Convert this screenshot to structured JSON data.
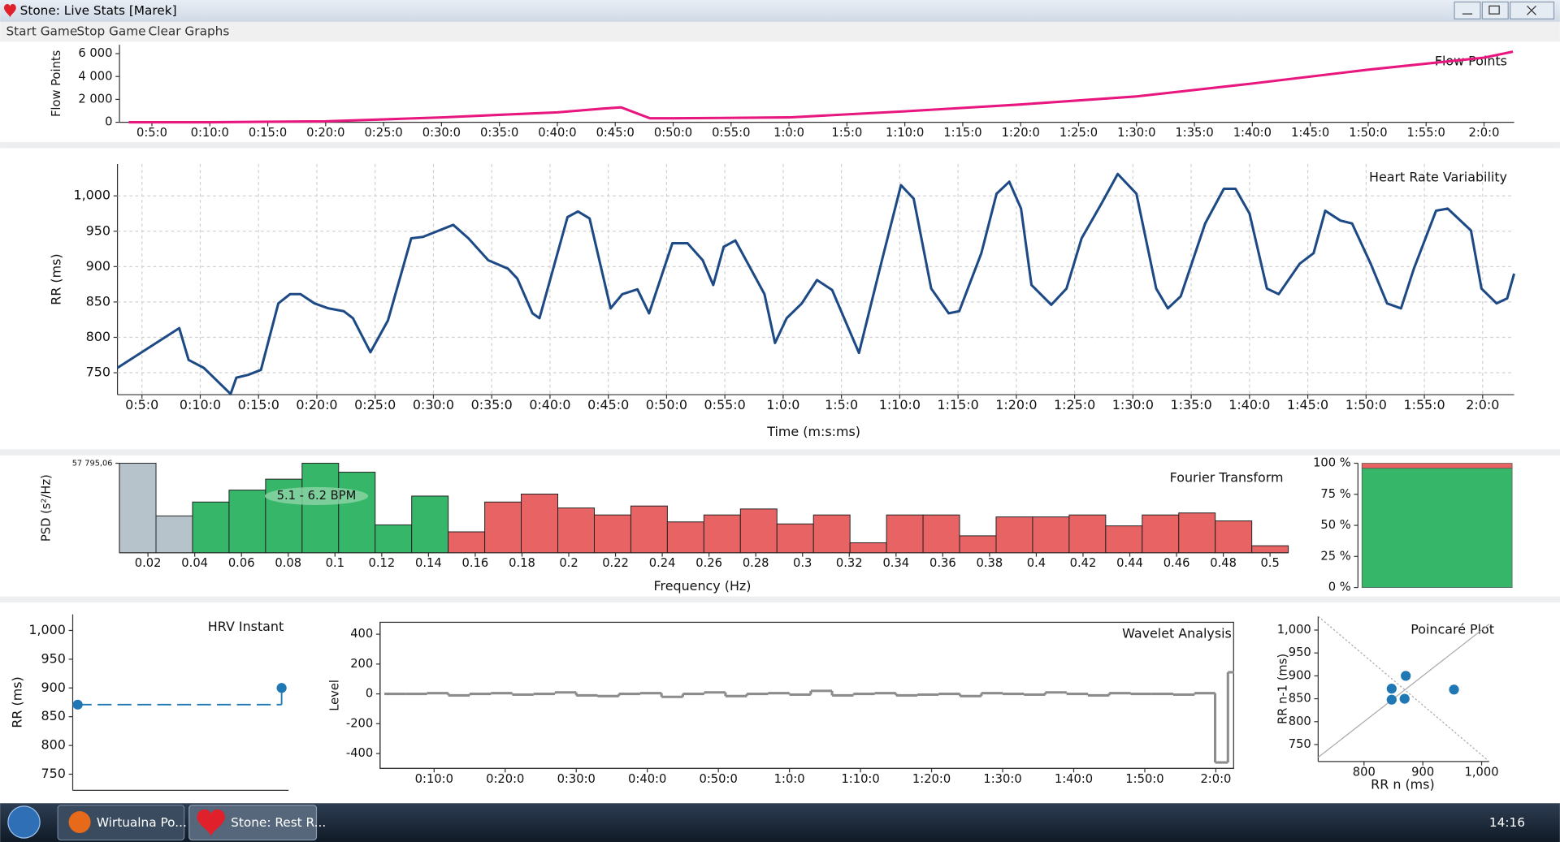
{
  "window_title": "Stone: Live Stats [Marek]",
  "menu": [
    "Start Game",
    "Stop Game",
    "Clear Graphs"
  ],
  "taskbar": {
    "buttons": [
      "Wirtualna Po...",
      "Stone: Rest R..."
    ],
    "clock": "14:16"
  },
  "chart_data": [
    {
      "type": "line",
      "title": "Flow Points",
      "y_label": "Flow Points",
      "color": "#e8177f",
      "x": [
        3,
        10,
        20,
        25,
        30,
        35,
        40,
        44,
        45.5,
        48,
        50,
        60,
        70,
        80,
        90,
        100,
        110,
        120,
        122.5
      ],
      "values": [
        0,
        0,
        90,
        250,
        430,
        650,
        870,
        1200,
        1300,
        350,
        350,
        430,
        960,
        1560,
        2260,
        3390,
        4600,
        5650,
        6170
      ],
      "xlim": [
        2.2,
        122.6
      ],
      "ylim": [
        0,
        6780
      ],
      "yticks": [
        0,
        {
          "value": 2000,
          "label": "2 000"
        },
        {
          "value": 4000,
          "label": "4 000"
        },
        {
          "value": 6000,
          "label": "6 000"
        }
      ],
      "xticks": [
        {
          "value": 5,
          "label": "0:5:0"
        },
        {
          "value": 10,
          "label": "0:10:0"
        },
        {
          "value": 15,
          "label": "0:15:0"
        },
        {
          "value": 20,
          "label": "0:20:0"
        },
        {
          "value": 25,
          "label": "0:25:0"
        },
        {
          "value": 30,
          "label": "0:30:0"
        },
        {
          "value": 35,
          "label": "0:35:0"
        },
        {
          "value": 40,
          "label": "0:40:0"
        },
        {
          "value": 45,
          "label": "0:45:0"
        },
        {
          "value": 50,
          "label": "0:50:0"
        },
        {
          "value": 55,
          "label": "0:55:0"
        },
        {
          "value": 60,
          "label": "1:0:0"
        },
        {
          "value": 65,
          "label": "1:5:0"
        },
        {
          "value": 70,
          "label": "1:10:0"
        },
        {
          "value": 75,
          "label": "1:15:0"
        },
        {
          "value": 80,
          "label": "1:20:0"
        },
        {
          "value": 85,
          "label": "1:25:0"
        },
        {
          "value": 90,
          "label": "1:30:0"
        },
        {
          "value": 95,
          "label": "1:35:0"
        },
        {
          "value": 100,
          "label": "1:40:0"
        },
        {
          "value": 105,
          "label": "1:45:0"
        },
        {
          "value": 110,
          "label": "1:50:0"
        },
        {
          "value": 115,
          "label": "1:55:0"
        },
        {
          "value": 120,
          "label": "2:0:0"
        }
      ],
      "grid": false
    },
    {
      "type": "line",
      "title": "Heart Rate Variability",
      "x_label": "Time (m:s:ms)",
      "y_label": "RR (ms)",
      "color": "#1d4a85",
      "x": [
        2.9,
        8.2,
        9.0,
        10.3,
        12.6,
        13.1,
        14.1,
        15.2,
        16.7,
        17.7,
        18.6,
        19.8,
        21.0,
        22.3,
        23.1,
        24.6,
        26.1,
        28.1,
        29.1,
        31.7,
        33.0,
        34.7,
        36.4,
        37.2,
        38.5,
        39.1,
        41.5,
        42.4,
        43.4,
        45.2,
        46.2,
        47.5,
        48.5,
        50.5,
        51.8,
        53.1,
        54.0,
        54.9,
        55.9,
        58.4,
        59.3,
        60.3,
        61.6,
        62.9,
        64.2,
        66.5,
        68.4,
        70.1,
        71.2,
        72.7,
        74.2,
        75.1,
        77.0,
        78.3,
        79.4,
        80.4,
        81.3,
        83.0,
        84.3,
        85.6,
        87.3,
        88.7,
        90.3,
        92.0,
        93.0,
        94.1,
        96.2,
        97.8,
        98.8,
        100.0,
        101.5,
        102.5,
        104.3,
        105.5,
        106.5,
        107.8,
        108.8,
        110.4,
        111.8,
        113.0,
        114.1,
        116.0,
        117.0,
        119.0,
        119.9,
        121.2,
        122.1,
        122.7
      ],
      "values": [
        757,
        813,
        768,
        757,
        720,
        743,
        747,
        754,
        848,
        861,
        861,
        848,
        841,
        837,
        827,
        779,
        824,
        940,
        942,
        959,
        940,
        909,
        897,
        883,
        834,
        827,
        970,
        978,
        968,
        841,
        861,
        868,
        834,
        933,
        933,
        909,
        874,
        928,
        937,
        861,
        792,
        827,
        848,
        881,
        867,
        778,
        904,
        1015,
        996,
        869,
        834,
        837,
        919,
        1003,
        1020,
        982,
        874,
        846,
        869,
        940,
        989,
        1031,
        1003,
        869,
        841,
        858,
        961,
        1010,
        1010,
        975,
        869,
        861,
        904,
        919,
        979,
        965,
        961,
        904,
        848,
        841,
        897,
        979,
        982,
        951,
        869,
        848,
        855,
        890
      ],
      "xlim": [
        2.9,
        122.7
      ],
      "ylim": [
        719,
        1045
      ],
      "yticks": [
        750,
        800,
        850,
        900,
        950,
        {
          "value": 1000,
          "label": "1,000"
        }
      ],
      "xticks": [
        {
          "value": 5,
          "label": "0:5:0"
        },
        {
          "value": 10,
          "label": "0:10:0"
        },
        {
          "value": 15,
          "label": "0:15:0"
        },
        {
          "value": 20,
          "label": "0:20:0"
        },
        {
          "value": 25,
          "label": "0:25:0"
        },
        {
          "value": 30,
          "label": "0:30:0"
        },
        {
          "value": 35,
          "label": "0:35:0"
        },
        {
          "value": 40,
          "label": "0:40:0"
        },
        {
          "value": 45,
          "label": "0:45:0"
        },
        {
          "value": 50,
          "label": "0:50:0"
        },
        {
          "value": 55,
          "label": "0:55:0"
        },
        {
          "value": 60,
          "label": "1:0:0"
        },
        {
          "value": 65,
          "label": "1:5:0"
        },
        {
          "value": 70,
          "label": "1:10:0"
        },
        {
          "value": 75,
          "label": "1:15:0"
        },
        {
          "value": 80,
          "label": "1:20:0"
        },
        {
          "value": 85,
          "label": "1:25:0"
        },
        {
          "value": 90,
          "label": "1:30:0"
        },
        {
          "value": 95,
          "label": "1:35:0"
        },
        {
          "value": 100,
          "label": "1:40:0"
        },
        {
          "value": 105,
          "label": "1:45:0"
        },
        {
          "value": 110,
          "label": "1:50:0"
        },
        {
          "value": 115,
          "label": "1:55:0"
        },
        {
          "value": 120,
          "label": "2:0:0"
        }
      ],
      "grid": true
    },
    {
      "type": "histogram",
      "title": "Fourier Transform",
      "x_label": "Frequency (Hz)",
      "y_label": "PSD (s²/Hz)",
      "annotation": "5.1 - 6.2 BPM",
      "bins": [
        0.0078125,
        0.0234375,
        0.0390625,
        0.0546875,
        0.0703125,
        0.0859375,
        0.1015625,
        0.1171875,
        0.1328125,
        0.1484375,
        0.1640625,
        0.1796875,
        0.1953125,
        0.2109375,
        0.2265625,
        0.2421875,
        0.2578125,
        0.2734375,
        0.2890625,
        0.3046875,
        0.3203125,
        0.3359375,
        0.3515625,
        0.3671875,
        0.3828125,
        0.3984375,
        0.4140625,
        0.4296875,
        0.4453125,
        0.4609375,
        0.4765625,
        0.4921875,
        0.5078125
      ],
      "values": [
        57795.06,
        23760,
        32750,
        40460,
        47520,
        57795.06,
        52015,
        17980,
        36600,
        13490,
        32750,
        37890,
        28900,
        24400,
        30180,
        19910,
        24400,
        28260,
        18620,
        24400,
        6420,
        24400,
        24400,
        10920,
        23120,
        23120,
        24400,
        17340,
        24400,
        25690,
        20550,
        4500
      ],
      "colors": [
        "#b7c3cb",
        "#b7c3cb",
        "#35b668",
        "#35b668",
        "#35b668",
        "#35b668",
        "#35b668",
        "#35b668",
        "#35b668",
        "#e86363",
        "#e86363",
        "#e86363",
        "#e86363",
        "#e86363",
        "#e86363",
        "#e86363",
        "#e86363",
        "#e86363",
        "#e86363",
        "#e86363",
        "#e86363",
        "#e86363",
        "#e86363",
        "#e86363",
        "#e86363",
        "#e86363",
        "#e86363",
        "#e86363",
        "#e86363",
        "#e86363",
        "#e86363",
        "#e86363"
      ],
      "xlim": [
        0.0078125,
        0.5078125
      ],
      "ylim": [
        0,
        57795.06
      ],
      "yticks": [
        {
          "value": 57795.06,
          "label": "57 795,06"
        }
      ],
      "xticks": [
        0.02,
        0.04,
        0.06,
        0.08,
        0.1,
        0.12,
        0.14,
        0.16,
        0.18,
        0.2,
        0.22,
        0.24,
        0.26,
        0.28,
        0.3,
        0.32,
        0.34,
        0.36,
        0.38,
        0.4,
        0.42,
        0.44,
        0.46,
        0.48,
        0.5
      ]
    },
    {
      "type": "stacked_bar",
      "series": [
        {
          "color": "#35b668",
          "values": [
            96
          ]
        },
        {
          "color": "#e86363",
          "values": [
            4
          ]
        }
      ],
      "ylim": [
        0,
        100
      ],
      "yticks": [
        {
          "value": 0,
          "label": "0 %"
        },
        {
          "value": 25,
          "label": "25 %"
        },
        {
          "value": 50,
          "label": "50 %"
        },
        {
          "value": 75,
          "label": "75 %"
        },
        {
          "value": 100,
          "label": "100 %"
        }
      ]
    },
    {
      "type": "dot",
      "title": "HRV Instant",
      "y_label": "RR (ms)",
      "color": "#1f77b4",
      "values": [
        871,
        900
      ],
      "ylim": [
        722,
        1028
      ],
      "yticks": [
        750,
        800,
        850,
        900,
        950,
        {
          "value": 1000,
          "label": "1,000"
        }
      ]
    },
    {
      "type": "step",
      "title": "Wavelet Analysis",
      "y_label": "Level",
      "color": "#8c8c8c",
      "x": [
        3,
        6,
        9,
        12,
        15,
        18,
        21,
        24,
        27,
        30,
        33,
        36,
        39,
        42,
        45,
        48,
        51,
        54,
        57,
        60,
        63,
        66,
        69,
        72,
        75,
        78,
        81,
        84,
        87,
        90,
        93,
        96,
        99,
        102,
        105,
        108,
        111,
        114,
        117,
        119.9,
        121.7,
        122.3
      ],
      "values": [
        0,
        0,
        5,
        -10,
        0,
        5,
        -5,
        0,
        10,
        -10,
        -15,
        0,
        5,
        -20,
        0,
        10,
        -15,
        0,
        5,
        -5,
        20,
        -10,
        0,
        5,
        -10,
        -5,
        0,
        -15,
        5,
        0,
        -5,
        10,
        0,
        -10,
        5,
        0,
        0,
        -5,
        5,
        -460,
        145,
        145
      ],
      "xlim": [
        2.4,
        122.5
      ],
      "ylim": [
        -500,
        480
      ],
      "yticks": [
        -400,
        -200,
        0,
        200,
        400
      ],
      "xticks": [
        {
          "value": 10,
          "label": "0:10:0"
        },
        {
          "value": 20,
          "label": "0:20:0"
        },
        {
          "value": 30,
          "label": "0:30:0"
        },
        {
          "value": 40,
          "label": "0:40:0"
        },
        {
          "value": 50,
          "label": "0:50:0"
        },
        {
          "value": 60,
          "label": "1:0:0"
        },
        {
          "value": 70,
          "label": "1:10:0"
        },
        {
          "value": 80,
          "label": "1:20:0"
        },
        {
          "value": 90,
          "label": "1:30:0"
        },
        {
          "value": 100,
          "label": "1:40:0"
        },
        {
          "value": 110,
          "label": "1:50:0"
        },
        {
          "value": 120,
          "label": "2:0:0"
        }
      ]
    },
    {
      "type": "scatter",
      "title": "Poincaré Plot",
      "x_label": "RR n (ms)",
      "y_label": "RR n-1 (ms)",
      "color": "#1f77b4",
      "x": [
        847,
        871,
        847,
        869,
        953
      ],
      "values": [
        872,
        900,
        848,
        850,
        870
      ],
      "xlim": [
        722,
        1013
      ],
      "ylim": [
        713,
        1030
      ],
      "xticks": [
        800,
        900,
        {
          "value": 1000,
          "label": "1,000"
        }
      ],
      "yticks": [
        750,
        800,
        850,
        900,
        950,
        {
          "value": 1000,
          "label": "1,000"
        }
      ]
    }
  ]
}
